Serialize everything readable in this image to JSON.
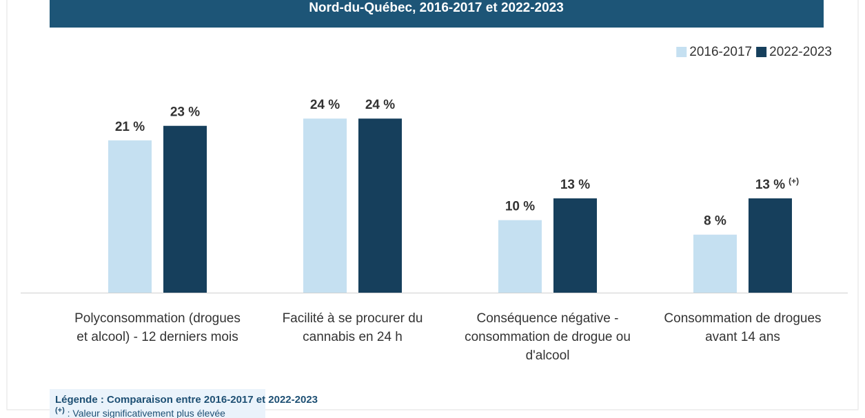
{
  "chart_data": {
    "type": "bar",
    "title": "Nord-du-Québec, 2016-2017 et 2022-2023",
    "categories": [
      [
        "Polyconsommation (drogues",
        "et alcool) - 12 derniers mois"
      ],
      [
        "Facilité à se procurer du",
        "cannabis en 24 h"
      ],
      [
        "Conséquence négative -",
        "consommation de drogue ou",
        "d'alcool"
      ],
      [
        "Consommation de drogues",
        "avant 14 ans"
      ]
    ],
    "series": [
      {
        "name": "2016-2017",
        "color": "#c5e0f1",
        "values": [
          21,
          24,
          10,
          8
        ],
        "value_labels": [
          "21 %",
          "24 %",
          "10 %",
          "8 %"
        ],
        "flags": [
          null,
          null,
          null,
          null
        ]
      },
      {
        "name": "2022-2023",
        "color": "#163f5c",
        "values": [
          23,
          24,
          13,
          13
        ],
        "value_labels": [
          "23 %",
          "24 %",
          "13 %",
          "13 %"
        ],
        "flags": [
          null,
          null,
          null,
          "(+)"
        ]
      }
    ],
    "ylim": [
      0,
      30
    ],
    "legend_position": "top-right",
    "note": {
      "title": "Légende : Comparaison entre 2016-2017 et 2022-2023",
      "symbol": "(+)",
      "text": " : Valeur significativement plus élevée"
    }
  }
}
